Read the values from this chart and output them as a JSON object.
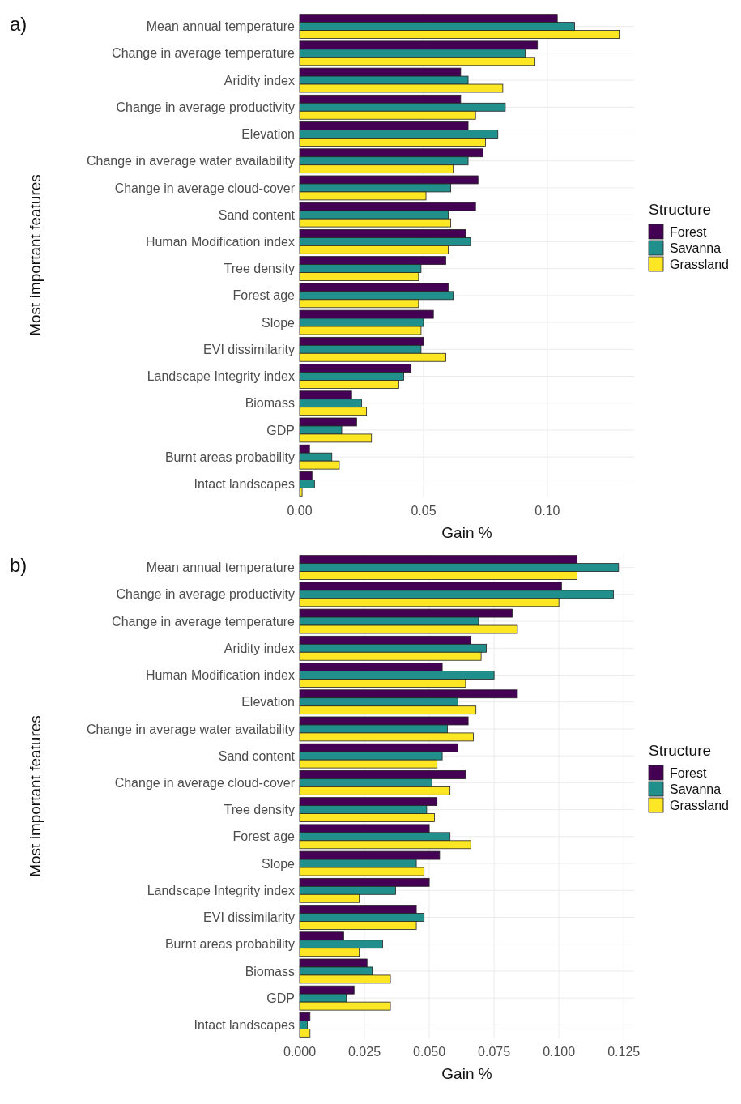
{
  "chart_data": [
    {
      "type": "bar",
      "orientation": "horizontal",
      "title": "a)",
      "xlabel": "Gain %",
      "ylabel": "Most important features",
      "legend_title": "Structure",
      "legend": "right",
      "grid": true,
      "categories": [
        "Mean annual temperature",
        "Change in average temperature",
        "Aridity index",
        "Change in average productivity",
        "Elevation",
        "Change in average water availability",
        "Change in average cloud-cover",
        "Sand content",
        "Human Modification index",
        "Tree density",
        "Forest age",
        "Slope",
        "EVI dissimilarity",
        "Landscape Integrity index",
        "Biomass",
        "GDP",
        "Burnt areas probability",
        "Intact landscapes"
      ],
      "series": [
        {
          "name": "Forest",
          "color": "#440154",
          "values": [
            0.104,
            0.096,
            0.065,
            0.065,
            0.068,
            0.074,
            0.072,
            0.071,
            0.067,
            0.059,
            0.06,
            0.054,
            0.05,
            0.045,
            0.021,
            0.023,
            0.004,
            0.005
          ]
        },
        {
          "name": "Savanna",
          "color": "#21908c",
          "values": [
            0.111,
            0.091,
            0.068,
            0.083,
            0.08,
            0.068,
            0.061,
            0.06,
            0.069,
            0.049,
            0.062,
            0.05,
            0.049,
            0.042,
            0.025,
            0.017,
            0.013,
            0.006
          ]
        },
        {
          "name": "Grassland",
          "color": "#fde725",
          "values": [
            0.129,
            0.095,
            0.082,
            0.071,
            0.075,
            0.062,
            0.051,
            0.061,
            0.06,
            0.048,
            0.048,
            0.049,
            0.059,
            0.04,
            0.027,
            0.029,
            0.016,
            0.001
          ]
        }
      ],
      "xlim": [
        0,
        0.135
      ],
      "xticks": [
        {
          "value": 0,
          "label": "0.00"
        },
        {
          "value": 0.05,
          "label": "0.05"
        },
        {
          "value": 0.1,
          "label": "0.10"
        }
      ]
    },
    {
      "type": "bar",
      "orientation": "horizontal",
      "title": "b)",
      "xlabel": "Gain %",
      "ylabel": "Most important features",
      "legend_title": "Structure",
      "legend": "right",
      "grid": true,
      "categories": [
        "Mean annual temperature",
        "Change in average productivity",
        "Change in average temperature",
        "Aridity index",
        "Human Modification index",
        "Elevation",
        "Change in average water availability",
        "Sand content",
        "Change in average cloud-cover",
        "Tree density",
        "Forest age",
        "Slope",
        "Landscape Integrity index",
        "EVI dissimilarity",
        "Burnt areas probability",
        "Biomass",
        "GDP",
        "Intact landscapes"
      ],
      "series": [
        {
          "name": "Forest",
          "color": "#440154",
          "values": [
            0.107,
            0.101,
            0.082,
            0.066,
            0.055,
            0.084,
            0.065,
            0.061,
            0.064,
            0.053,
            0.05,
            0.054,
            0.05,
            0.045,
            0.017,
            0.026,
            0.021,
            0.004
          ]
        },
        {
          "name": "Savanna",
          "color": "#21908c",
          "values": [
            0.123,
            0.121,
            0.069,
            0.072,
            0.075,
            0.061,
            0.057,
            0.055,
            0.051,
            0.049,
            0.058,
            0.045,
            0.037,
            0.048,
            0.032,
            0.028,
            0.018,
            0.003
          ]
        },
        {
          "name": "Grassland",
          "color": "#fde725",
          "values": [
            0.107,
            0.1,
            0.084,
            0.07,
            0.064,
            0.068,
            0.067,
            0.053,
            0.058,
            0.052,
            0.066,
            0.048,
            0.023,
            0.045,
            0.023,
            0.035,
            0.035,
            0.004
          ]
        }
      ],
      "xlim": [
        0,
        0.129
      ],
      "xticks": [
        {
          "value": 0,
          "label": "0.000"
        },
        {
          "value": 0.025,
          "label": "0.025"
        },
        {
          "value": 0.05,
          "label": "0.050"
        },
        {
          "value": 0.075,
          "label": "0.075"
        },
        {
          "value": 0.1,
          "label": "0.100"
        },
        {
          "value": 0.125,
          "label": "0.125"
        }
      ]
    }
  ]
}
